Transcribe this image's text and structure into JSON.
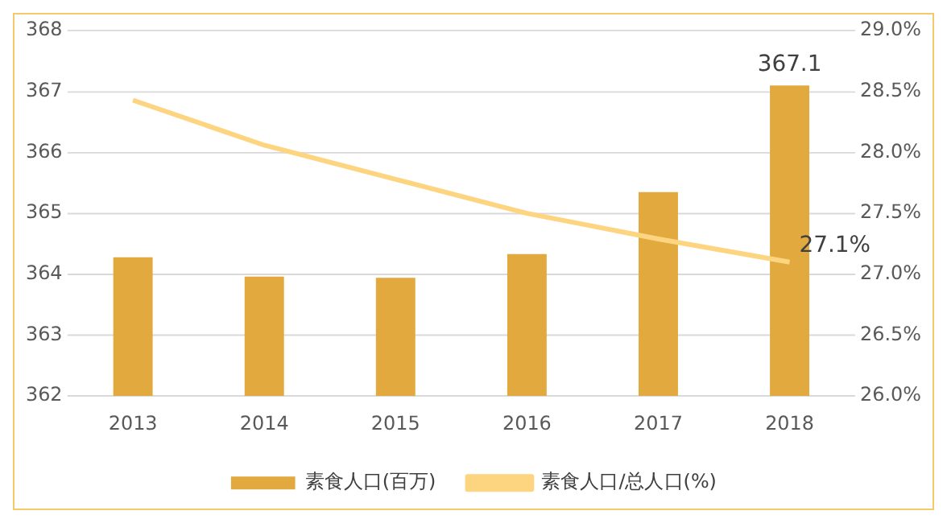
{
  "chart_data": {
    "type": "bar",
    "categories": [
      "2013",
      "2014",
      "2015",
      "2016",
      "2017",
      "2018"
    ],
    "series": [
      {
        "name": "素食人口(百万)",
        "color": "#e2a93f",
        "values": [
          364.28,
          363.96,
          363.94,
          364.33,
          365.35,
          367.1
        ],
        "value_labels": [
          null,
          null,
          null,
          null,
          null,
          "367.1"
        ]
      },
      {
        "name": "素食人口/总人口(%)",
        "type": "line",
        "axis": "y2",
        "color": "#fdd47f",
        "values": [
          28.43,
          28.06,
          27.78,
          27.5,
          27.29,
          27.1
        ],
        "value_labels": [
          null,
          null,
          null,
          null,
          null,
          "27.1%"
        ]
      }
    ],
    "ylim": [
      362,
      368
    ],
    "yticks": [
      362,
      363,
      364,
      365,
      366,
      367,
      368
    ],
    "y2lim": [
      26,
      29
    ],
    "y2ticks": [
      {
        "value": 26,
        "label": "26.0%"
      },
      {
        "value": 26.5,
        "label": "26.5%"
      },
      {
        "value": 27,
        "label": "27.0%"
      },
      {
        "value": 27.5,
        "label": "27.5%"
      },
      {
        "value": 28,
        "label": "28.0%"
      },
      {
        "value": 28.5,
        "label": "28.5%"
      },
      {
        "value": 29,
        "label": "29.0%"
      }
    ],
    "grid": "y",
    "legend": "bottom",
    "marker": "none"
  }
}
